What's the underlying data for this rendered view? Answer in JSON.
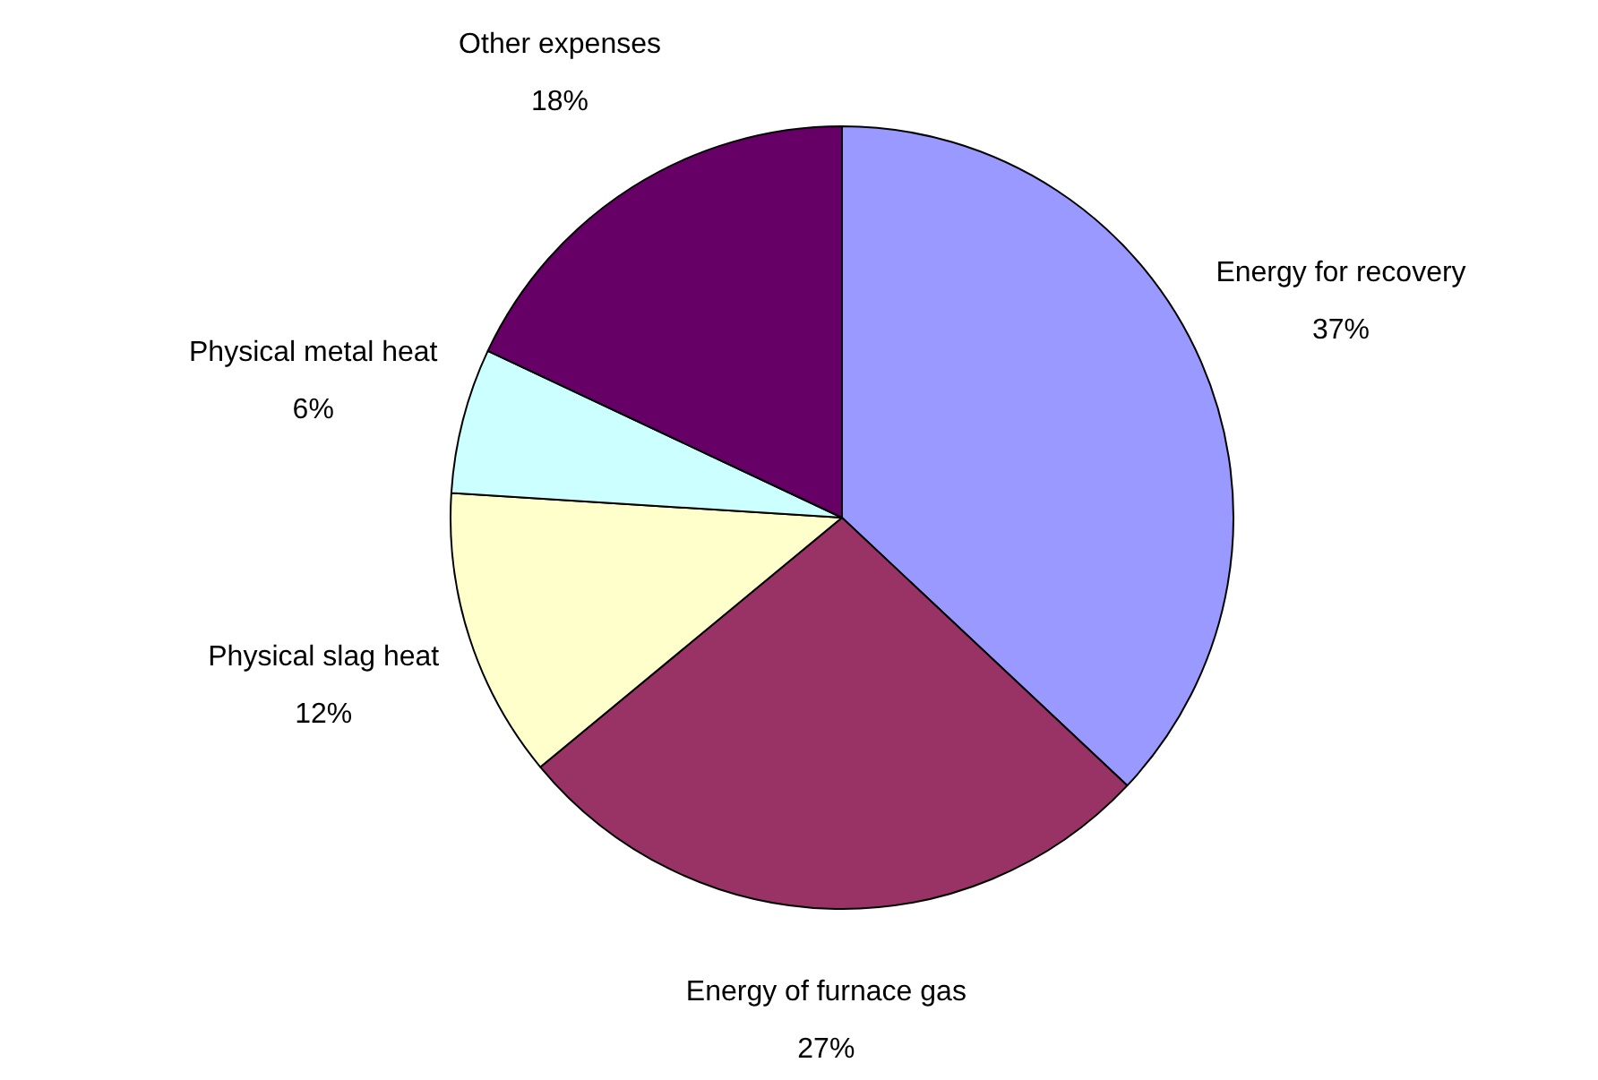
{
  "chart_data": {
    "type": "pie",
    "categories": [
      "Energy for recovery",
      "Energy of furnace gas",
      "Physical slag heat",
      "Physical metal heat",
      "Other expenses"
    ],
    "values": [
      37,
      27,
      12,
      6,
      18
    ],
    "colors": [
      "#9999ff",
      "#993366",
      "#ffffcc",
      "#ccffff",
      "#660066"
    ],
    "value_labels": [
      "37%",
      "27%",
      "12%",
      "6%",
      "18%"
    ],
    "legend": false
  }
}
